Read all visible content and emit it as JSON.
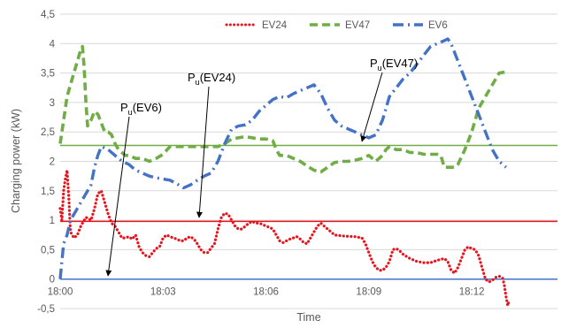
{
  "chart_data": {
    "type": "line",
    "xlabel": "Time",
    "ylabel": "Charging power (kW)",
    "x_unit": "minutes",
    "xlim": [
      0,
      14.5
    ],
    "ylim": [
      -0.5,
      4.5
    ],
    "yticks": [
      -0.5,
      0,
      0.5,
      1,
      1.5,
      2,
      2.5,
      3,
      3.5,
      4,
      4.5
    ],
    "ytick_labels": [
      "-0,5",
      "0",
      "0,5",
      "1",
      "1,5",
      "2",
      "2,5",
      "3",
      "3,5",
      "4",
      "4,5"
    ],
    "xticks": [
      0,
      3,
      6,
      9,
      12
    ],
    "xtick_labels": [
      "18:00",
      "18:03",
      "18:06",
      "18:09",
      "18:12"
    ],
    "grid": "horizontal",
    "legend_position": "top",
    "series": [
      {
        "name": "EV24",
        "color": "#e8141d",
        "style": "dotted",
        "points": [
          [
            0,
            1.2
          ],
          [
            0.05,
            1.0
          ],
          [
            0.1,
            1.5
          ],
          [
            0.15,
            1.7
          ],
          [
            0.2,
            1.85
          ],
          [
            0.25,
            1.4
          ],
          [
            0.3,
            0.8
          ],
          [
            0.4,
            0.7
          ],
          [
            0.5,
            0.75
          ],
          [
            0.6,
            0.9
          ],
          [
            0.75,
            1.05
          ],
          [
            0.9,
            1.0
          ],
          [
            1.0,
            1.2
          ],
          [
            1.1,
            1.45
          ],
          [
            1.2,
            1.5
          ],
          [
            1.3,
            1.3
          ],
          [
            1.4,
            1.1
          ],
          [
            1.5,
            0.95
          ],
          [
            1.6,
            0.9
          ],
          [
            1.7,
            0.8
          ],
          [
            1.8,
            0.7
          ],
          [
            1.9,
            0.7
          ],
          [
            2.0,
            0.72
          ],
          [
            2.1,
            0.68
          ],
          [
            2.2,
            0.75
          ],
          [
            2.3,
            0.55
          ],
          [
            2.4,
            0.45
          ],
          [
            2.5,
            0.4
          ],
          [
            2.6,
            0.38
          ],
          [
            2.7,
            0.45
          ],
          [
            2.8,
            0.52
          ],
          [
            2.9,
            0.55
          ],
          [
            3.0,
            0.7
          ],
          [
            3.1,
            0.75
          ],
          [
            3.2,
            0.72
          ],
          [
            3.3,
            0.7
          ],
          [
            3.4,
            0.68
          ],
          [
            3.5,
            0.65
          ],
          [
            3.6,
            0.65
          ],
          [
            3.7,
            0.7
          ],
          [
            3.8,
            0.72
          ],
          [
            3.9,
            0.68
          ],
          [
            4.0,
            0.6
          ],
          [
            4.1,
            0.5
          ],
          [
            4.2,
            0.45
          ],
          [
            4.3,
            0.45
          ],
          [
            4.5,
            0.6
          ],
          [
            4.6,
            0.85
          ],
          [
            4.7,
            1.05
          ],
          [
            4.8,
            1.12
          ],
          [
            4.9,
            1.1
          ],
          [
            5.0,
            1.0
          ],
          [
            5.1,
            0.9
          ],
          [
            5.2,
            0.85
          ],
          [
            5.3,
            0.85
          ],
          [
            5.4,
            0.9
          ],
          [
            5.5,
            0.95
          ],
          [
            5.6,
            0.98
          ],
          [
            5.7,
            0.95
          ],
          [
            5.8,
            0.95
          ],
          [
            5.9,
            0.93
          ],
          [
            6.0,
            0.9
          ],
          [
            6.1,
            0.88
          ],
          [
            6.2,
            0.85
          ],
          [
            6.3,
            0.75
          ],
          [
            6.4,
            0.65
          ],
          [
            6.5,
            0.62
          ],
          [
            6.6,
            0.65
          ],
          [
            6.7,
            0.68
          ],
          [
            6.8,
            0.7
          ],
          [
            6.9,
            0.72
          ],
          [
            7.0,
            0.68
          ],
          [
            7.1,
            0.62
          ],
          [
            7.2,
            0.6
          ],
          [
            7.3,
            0.7
          ],
          [
            7.4,
            0.8
          ],
          [
            7.5,
            0.9
          ],
          [
            7.6,
            0.95
          ],
          [
            7.7,
            0.9
          ],
          [
            7.8,
            0.85
          ],
          [
            7.9,
            0.8
          ],
          [
            8.0,
            0.75
          ],
          [
            8.3,
            0.73
          ],
          [
            8.6,
            0.72
          ],
          [
            8.8,
            0.7
          ],
          [
            8.9,
            0.6
          ],
          [
            9.0,
            0.45
          ],
          [
            9.1,
            0.3
          ],
          [
            9.2,
            0.2
          ],
          [
            9.3,
            0.15
          ],
          [
            9.4,
            0.15
          ],
          [
            9.5,
            0.2
          ],
          [
            9.6,
            0.3
          ],
          [
            9.7,
            0.5
          ],
          [
            9.8,
            0.52
          ],
          [
            9.9,
            0.48
          ],
          [
            10.0,
            0.42
          ],
          [
            10.2,
            0.35
          ],
          [
            10.4,
            0.3
          ],
          [
            10.6,
            0.28
          ],
          [
            10.8,
            0.28
          ],
          [
            11.0,
            0.32
          ],
          [
            11.2,
            0.35
          ],
          [
            11.3,
            0.3
          ],
          [
            11.4,
            0.15
          ],
          [
            11.5,
            0.1
          ],
          [
            11.6,
            0.2
          ],
          [
            11.7,
            0.35
          ],
          [
            11.8,
            0.5
          ],
          [
            11.9,
            0.55
          ],
          [
            12.0,
            0.52
          ],
          [
            12.1,
            0.5
          ],
          [
            12.2,
            0.4
          ],
          [
            12.3,
            0.2
          ],
          [
            12.4,
            0.0
          ],
          [
            12.5,
            -0.05
          ],
          [
            12.6,
            -0.02
          ],
          [
            12.7,
            0.03
          ],
          [
            12.8,
            0.05
          ],
          [
            12.9,
            0.02
          ],
          [
            12.95,
            -0.1
          ],
          [
            13.0,
            -0.3
          ],
          [
            13.05,
            -0.45
          ],
          [
            13.1,
            -0.35
          ]
        ]
      },
      {
        "name": "EV47",
        "color": "#70ad47",
        "style": "dashed",
        "points": [
          [
            0,
            2.3
          ],
          [
            0.1,
            2.7
          ],
          [
            0.2,
            3.1
          ],
          [
            0.3,
            3.3
          ],
          [
            0.4,
            3.5
          ],
          [
            0.5,
            3.7
          ],
          [
            0.6,
            3.9
          ],
          [
            0.65,
            3.95
          ],
          [
            0.7,
            3.6
          ],
          [
            0.75,
            3.0
          ],
          [
            0.8,
            2.6
          ],
          [
            0.9,
            2.7
          ],
          [
            1.0,
            2.85
          ],
          [
            1.1,
            2.8
          ],
          [
            1.2,
            2.65
          ],
          [
            1.3,
            2.5
          ],
          [
            1.4,
            2.5
          ],
          [
            1.5,
            2.45
          ],
          [
            1.6,
            2.3
          ],
          [
            1.7,
            2.2
          ],
          [
            1.8,
            2.15
          ],
          [
            1.9,
            2.1
          ],
          [
            2.0,
            2.1
          ],
          [
            2.2,
            2.05
          ],
          [
            2.4,
            2.05
          ],
          [
            2.6,
            2.0
          ],
          [
            2.8,
            2.05
          ],
          [
            3.0,
            2.12
          ],
          [
            3.2,
            2.25
          ],
          [
            3.4,
            2.25
          ],
          [
            3.6,
            2.25
          ],
          [
            3.8,
            2.25
          ],
          [
            4.0,
            2.25
          ],
          [
            4.2,
            2.25
          ],
          [
            4.4,
            2.25
          ],
          [
            4.6,
            2.25
          ],
          [
            4.8,
            2.3
          ],
          [
            5.0,
            2.38
          ],
          [
            5.2,
            2.4
          ],
          [
            5.4,
            2.42
          ],
          [
            5.6,
            2.4
          ],
          [
            5.8,
            2.38
          ],
          [
            6.0,
            2.38
          ],
          [
            6.2,
            2.35
          ],
          [
            6.3,
            2.2
          ],
          [
            6.4,
            2.1
          ],
          [
            6.6,
            2.1
          ],
          [
            6.8,
            2.05
          ],
          [
            7.0,
            2.0
          ],
          [
            7.2,
            1.92
          ],
          [
            7.4,
            1.85
          ],
          [
            7.6,
            1.82
          ],
          [
            7.8,
            1.9
          ],
          [
            8.0,
            1.98
          ],
          [
            8.2,
            2.0
          ],
          [
            8.4,
            2.0
          ],
          [
            8.6,
            2.02
          ],
          [
            8.8,
            2.05
          ],
          [
            9.0,
            2.1
          ],
          [
            9.2,
            2.0
          ],
          [
            9.4,
            2.1
          ],
          [
            9.5,
            2.2
          ],
          [
            9.6,
            2.25
          ],
          [
            9.8,
            2.2
          ],
          [
            10.0,
            2.2
          ],
          [
            10.2,
            2.15
          ],
          [
            10.4,
            2.15
          ],
          [
            10.6,
            2.12
          ],
          [
            10.8,
            2.12
          ],
          [
            11.0,
            2.12
          ],
          [
            11.1,
            2.1
          ],
          [
            11.2,
            1.9
          ],
          [
            11.3,
            1.9
          ],
          [
            11.5,
            1.9
          ],
          [
            11.6,
            1.95
          ],
          [
            11.8,
            2.2
          ],
          [
            12.0,
            2.5
          ],
          [
            12.2,
            2.9
          ],
          [
            12.4,
            3.1
          ],
          [
            12.6,
            3.3
          ],
          [
            12.8,
            3.5
          ],
          [
            13.0,
            3.52
          ]
        ]
      },
      {
        "name": "EV6",
        "color": "#4472c4",
        "style": "dash-dot",
        "points": [
          [
            0,
            0.0
          ],
          [
            0.05,
            0.3
          ],
          [
            0.1,
            0.6
          ],
          [
            0.2,
            0.75
          ],
          [
            0.3,
            1.0
          ],
          [
            0.5,
            1.2
          ],
          [
            0.7,
            1.4
          ],
          [
            0.9,
            1.6
          ],
          [
            1.0,
            1.9
          ],
          [
            1.1,
            2.1
          ],
          [
            1.2,
            2.25
          ],
          [
            1.4,
            2.2
          ],
          [
            1.6,
            2.1
          ],
          [
            1.8,
            2.0
          ],
          [
            2.0,
            1.95
          ],
          [
            2.2,
            1.85
          ],
          [
            2.4,
            1.8
          ],
          [
            2.6,
            1.75
          ],
          [
            2.8,
            1.72
          ],
          [
            3.0,
            1.7
          ],
          [
            3.2,
            1.68
          ],
          [
            3.4,
            1.62
          ],
          [
            3.6,
            1.55
          ],
          [
            3.8,
            1.6
          ],
          [
            4.0,
            1.68
          ],
          [
            4.2,
            1.75
          ],
          [
            4.4,
            1.8
          ],
          [
            4.6,
            2.0
          ],
          [
            4.8,
            2.3
          ],
          [
            5.0,
            2.55
          ],
          [
            5.2,
            2.6
          ],
          [
            5.4,
            2.62
          ],
          [
            5.6,
            2.7
          ],
          [
            5.8,
            2.85
          ],
          [
            6.0,
            2.95
          ],
          [
            6.2,
            3.05
          ],
          [
            6.4,
            3.1
          ],
          [
            6.6,
            3.08
          ],
          [
            6.8,
            3.15
          ],
          [
            7.0,
            3.2
          ],
          [
            7.2,
            3.25
          ],
          [
            7.4,
            3.3
          ],
          [
            7.6,
            3.15
          ],
          [
            7.8,
            2.9
          ],
          [
            8.0,
            2.7
          ],
          [
            8.2,
            2.6
          ],
          [
            8.4,
            2.55
          ],
          [
            8.6,
            2.5
          ],
          [
            8.8,
            2.45
          ],
          [
            9.0,
            2.4
          ],
          [
            9.2,
            2.45
          ],
          [
            9.4,
            2.7
          ],
          [
            9.6,
            3.1
          ],
          [
            9.8,
            3.25
          ],
          [
            10.0,
            3.4
          ],
          [
            10.2,
            3.5
          ],
          [
            10.4,
            3.65
          ],
          [
            10.6,
            3.8
          ],
          [
            10.8,
            3.95
          ],
          [
            11.0,
            4.0
          ],
          [
            11.2,
            4.05
          ],
          [
            11.3,
            4.08
          ],
          [
            11.4,
            4.0
          ],
          [
            11.6,
            3.7
          ],
          [
            11.8,
            3.4
          ],
          [
            12.0,
            3.1
          ],
          [
            12.2,
            2.8
          ],
          [
            12.4,
            2.5
          ],
          [
            12.6,
            2.2
          ],
          [
            12.8,
            2.0
          ],
          [
            13.0,
            1.9
          ]
        ]
      }
    ],
    "reference_lines": [
      {
        "y": 2.27,
        "color": "#70ad47"
      },
      {
        "y": 0.98,
        "color": "#e8141d"
      },
      {
        "y": 0.0,
        "color": "#4472c4"
      }
    ],
    "annotations": [
      {
        "main": "P",
        "sub": "u",
        "rest": "(EV47)"
      },
      {
        "main": "P",
        "sub": "u",
        "rest": "(EV24)"
      },
      {
        "main": "P",
        "sub": "u",
        "rest": "(EV6)"
      }
    ]
  }
}
